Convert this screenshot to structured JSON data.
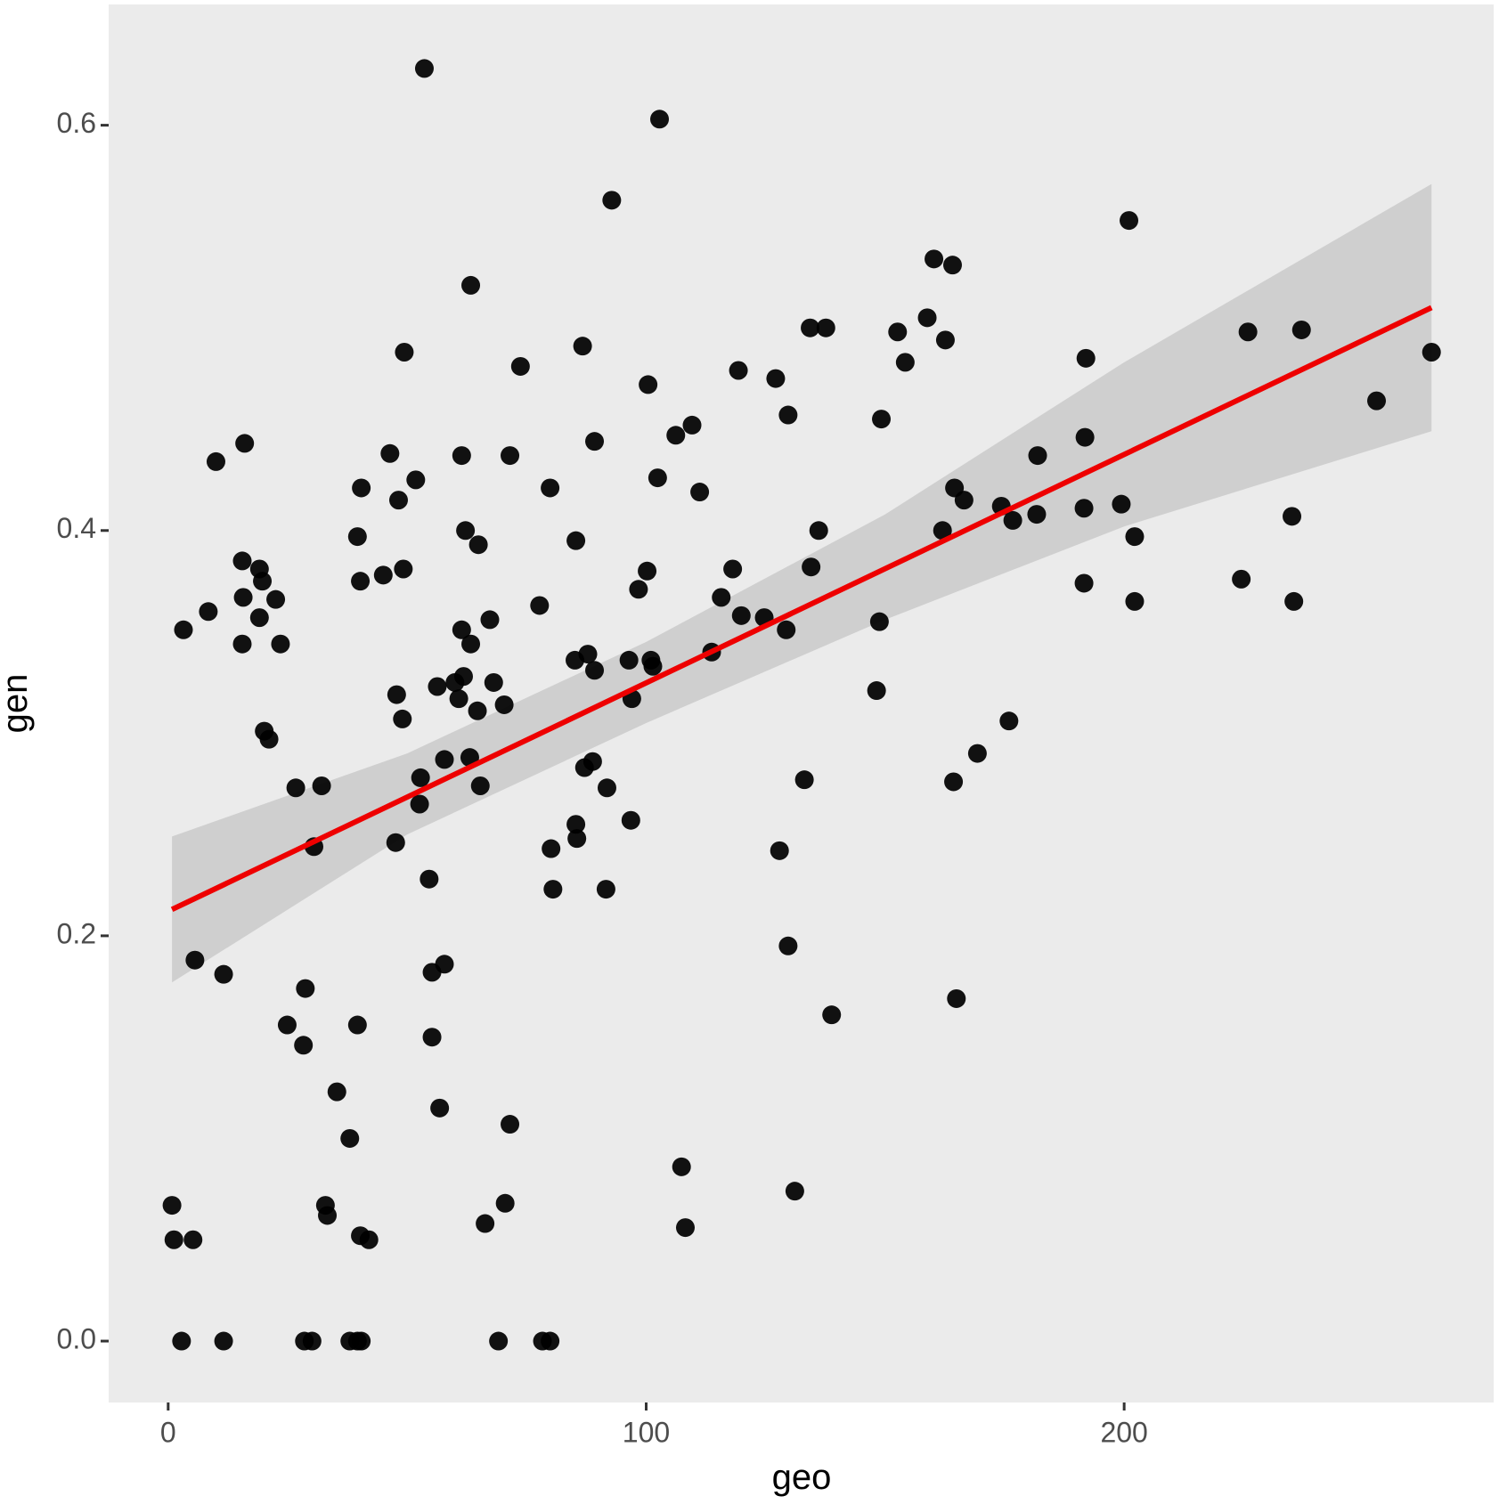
{
  "chart_data": {
    "type": "scatter",
    "x_label": "geo",
    "y_label": "gen",
    "point_color": "#000000",
    "panel_color": "#ebebeb",
    "grid": false,
    "xlim": [
      -12.45,
      277.3
    ],
    "ylim": [
      -0.0303,
      0.6596
    ],
    "xticks": [
      0,
      100,
      200
    ],
    "yticks": [
      {
        "value": 0,
        "label": "0.0"
      },
      0.2,
      0.4,
      0.6
    ],
    "x": [
      53.6,
      102.8,
      92.8,
      201.0,
      160.2,
      164.1,
      63.3,
      158.8,
      134.3,
      137.6,
      225.9,
      237.1,
      152.6,
      86.7,
      162.6,
      49.4,
      264.3,
      154.2,
      192.0,
      73.7,
      119.3,
      127.1,
      100.4,
      252.8,
      129.7,
      149.2,
      109.6,
      106.2,
      191.8,
      89.2,
      16.0,
      61.4,
      71.5,
      181.9,
      46.4,
      10.0,
      51.8,
      102.4,
      40.4,
      79.9,
      111.2,
      164.5,
      166.5,
      48.2,
      174.3,
      199.4,
      191.6,
      181.7,
      235.1,
      176.7,
      136.1,
      62.2,
      162.0,
      39.6,
      202.2,
      85.3,
      64.9,
      15.5,
      19.1,
      49.2,
      100.2,
      118.1,
      134.5,
      45.0,
      40.2,
      19.7,
      191.6,
      224.5,
      98.4,
      15.7,
      22.5,
      115.7,
      202.2,
      235.5,
      77.7,
      8.4,
      19.1,
      119.9,
      124.7,
      67.3,
      148.8,
      3.2,
      61.4,
      129.3,
      15.5,
      23.5,
      63.3,
      113.7,
      85.1,
      87.8,
      96.4,
      101.0,
      101.4,
      89.2,
      61.8,
      60.0,
      68.1,
      56.3,
      148.2,
      60.8,
      47.8,
      97.0,
      70.3,
      64.7,
      49.0,
      175.9,
      20.1,
      21.1,
      169.3,
      63.1,
      57.8,
      88.8,
      87.1,
      52.8,
      133.1,
      164.3,
      26.7,
      32.1,
      65.3,
      91.8,
      52.6,
      96.8,
      85.3,
      85.5,
      47.6,
      30.5,
      80.1,
      127.9,
      54.6,
      80.5,
      91.6,
      129.7,
      5.6,
      57.8,
      11.6,
      55.2,
      28.7,
      164.9,
      138.8,
      24.9,
      39.6,
      55.2,
      28.3,
      35.3,
      56.8,
      71.5,
      38.0,
      107.4,
      131.1,
      0.8,
      32.9,
      70.5,
      33.3,
      66.3,
      108.2,
      40.2,
      1.2,
      5.2,
      42.0,
      2.8,
      11.6,
      28.5,
      30.1,
      38.0,
      39.6,
      40.4,
      69.1,
      78.3,
      79.9
    ],
    "y": [
      0.628,
      0.603,
      0.563,
      0.553,
      0.534,
      0.531,
      0.521,
      0.505,
      0.5,
      0.5,
      0.498,
      0.499,
      0.498,
      0.491,
      0.494,
      0.488,
      0.488,
      0.483,
      0.485,
      0.481,
      0.479,
      0.475,
      0.472,
      0.464,
      0.457,
      0.455,
      0.452,
      0.447,
      0.446,
      0.444,
      0.443,
      0.437,
      0.437,
      0.437,
      0.438,
      0.434,
      0.425,
      0.426,
      0.421,
      0.421,
      0.419,
      0.421,
      0.415,
      0.415,
      0.412,
      0.413,
      0.411,
      0.408,
      0.407,
      0.405,
      0.4,
      0.4,
      0.4,
      0.397,
      0.397,
      0.395,
      0.393,
      0.385,
      0.381,
      0.381,
      0.38,
      0.381,
      0.382,
      0.378,
      0.375,
      0.375,
      0.374,
      0.376,
      0.371,
      0.367,
      0.366,
      0.367,
      0.365,
      0.365,
      0.363,
      0.36,
      0.357,
      0.358,
      0.357,
      0.356,
      0.355,
      0.351,
      0.351,
      0.351,
      0.344,
      0.344,
      0.344,
      0.34,
      0.336,
      0.339,
      0.336,
      0.336,
      0.333,
      0.331,
      0.328,
      0.325,
      0.325,
      0.323,
      0.321,
      0.317,
      0.319,
      0.317,
      0.314,
      0.311,
      0.307,
      0.306,
      0.301,
      0.297,
      0.29,
      0.288,
      0.287,
      0.286,
      0.283,
      0.278,
      0.277,
      0.276,
      0.273,
      0.274,
      0.274,
      0.273,
      0.265,
      0.257,
      0.255,
      0.248,
      0.246,
      0.244,
      0.243,
      0.242,
      0.228,
      0.223,
      0.223,
      0.195,
      0.188,
      0.186,
      0.181,
      0.182,
      0.174,
      0.169,
      0.161,
      0.156,
      0.156,
      0.15,
      0.146,
      0.123,
      0.115,
      0.107,
      0.1,
      0.086,
      0.074,
      0.067,
      0.067,
      0.068,
      0.062,
      0.058,
      0.056,
      0.052,
      0.05,
      0.05,
      0.05,
      0,
      0,
      0,
      0,
      0,
      0,
      0,
      0,
      0,
      0
    ],
    "fit": {
      "color": "#ee0000",
      "x": [
        0.8,
        264.3
      ],
      "y": [
        0.213,
        0.51
      ]
    },
    "band": {
      "color": "#c8c8c8",
      "x": [
        0.8,
        50,
        100,
        150,
        200,
        264.3
      ],
      "upper": [
        0.249,
        0.29,
        0.345,
        0.408,
        0.483,
        0.571
      ],
      "lower": [
        0.177,
        0.25,
        0.305,
        0.356,
        0.402,
        0.449
      ]
    }
  }
}
